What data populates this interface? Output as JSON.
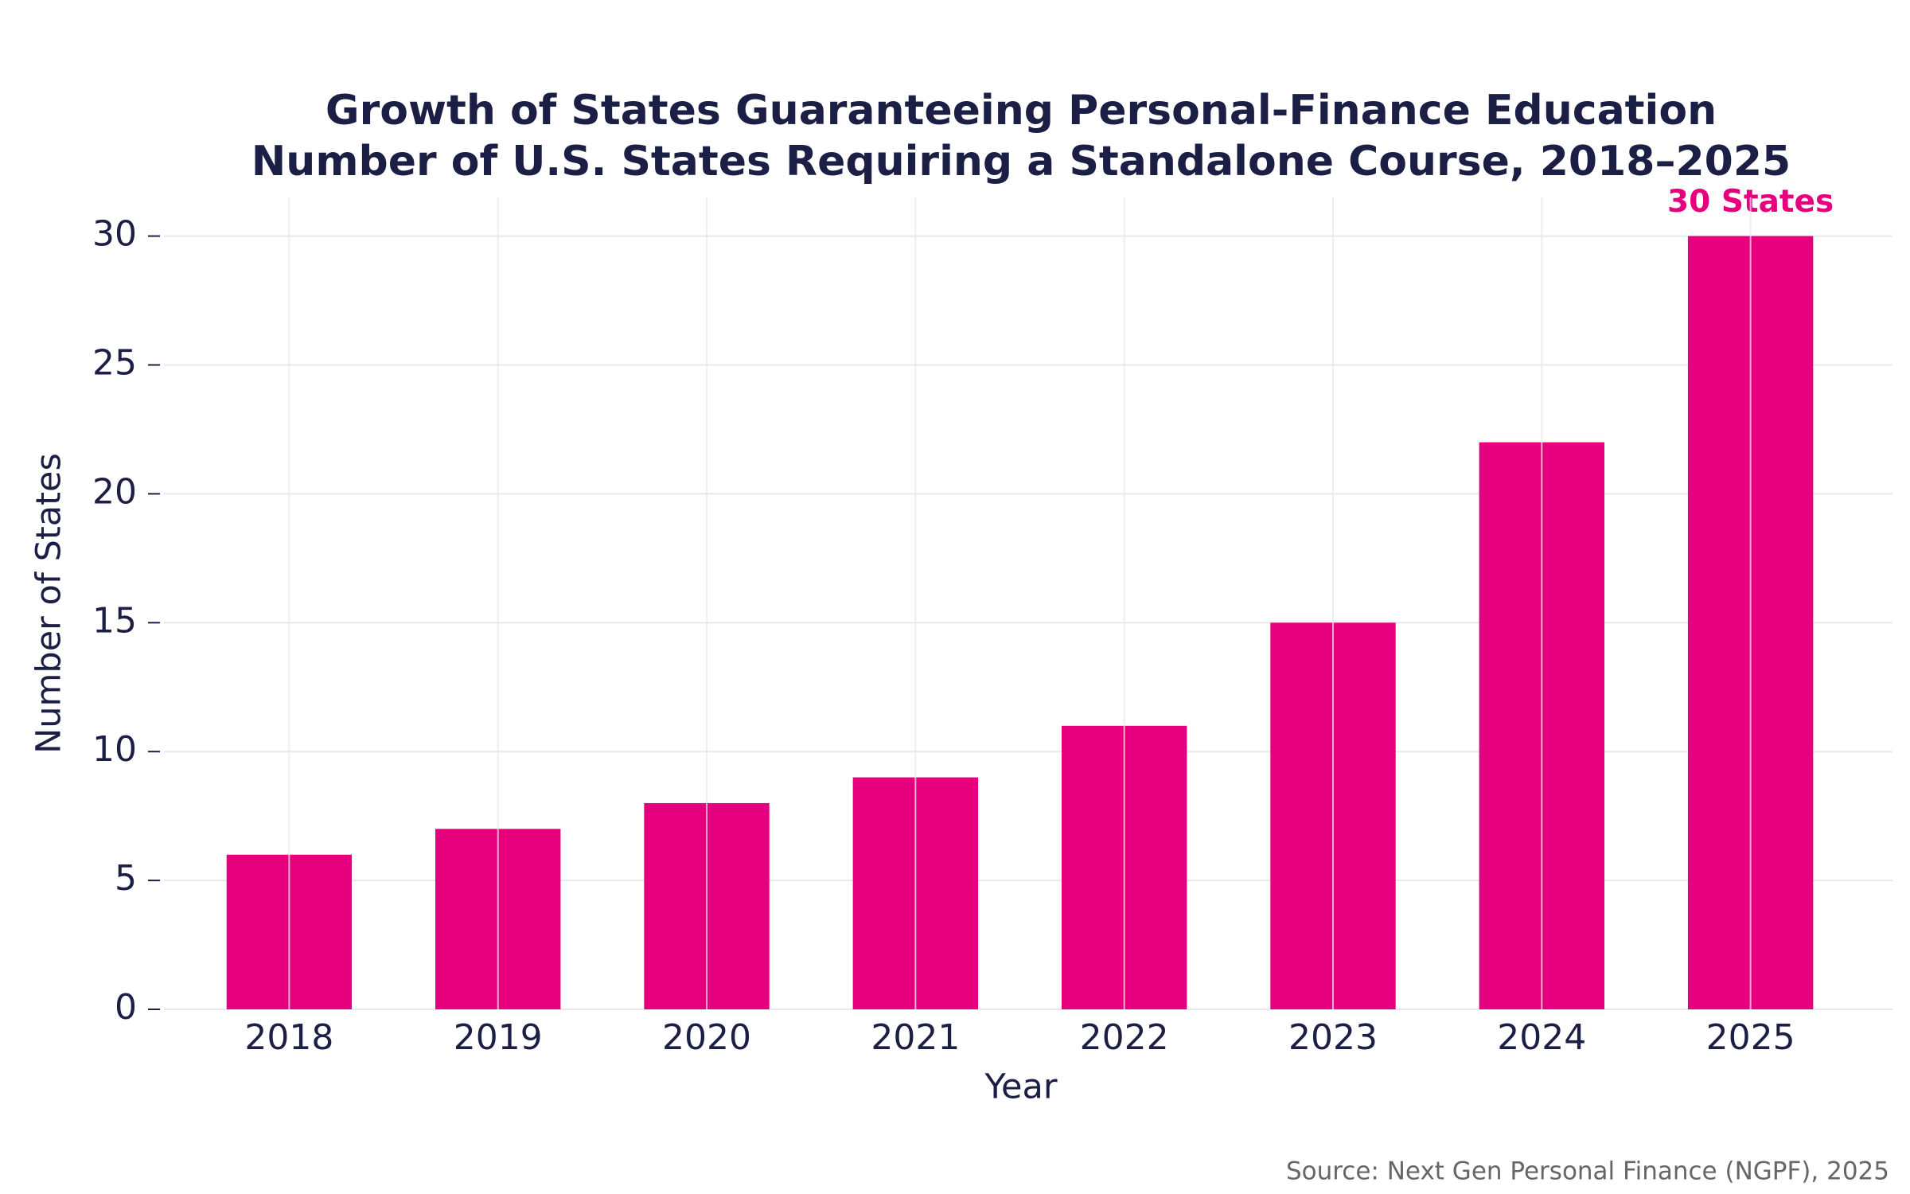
{
  "chart_data": {
    "type": "bar",
    "title": "Growth of States Guaranteeing Personal-Finance Education",
    "subtitle": "Number of U.S. States Requiring a Standalone Course, 2018–2025",
    "x_label": "Year",
    "y_label": "Number of States",
    "source": "Source: Next Gen Personal Finance (NGPF), 2025",
    "categories": [
      "2018",
      "2019",
      "2020",
      "2021",
      "2022",
      "2023",
      "2024",
      "2025"
    ],
    "values": [
      6,
      7,
      8,
      9,
      11,
      15,
      22,
      30
    ],
    "value_labels": [
      null,
      null,
      null,
      null,
      null,
      null,
      null,
      "30 States"
    ],
    "color": "#e6007e",
    "ylim": [
      0,
      31.5
    ],
    "yticks": [
      0,
      5,
      10,
      15,
      20,
      25,
      30
    ],
    "grid": true
  }
}
